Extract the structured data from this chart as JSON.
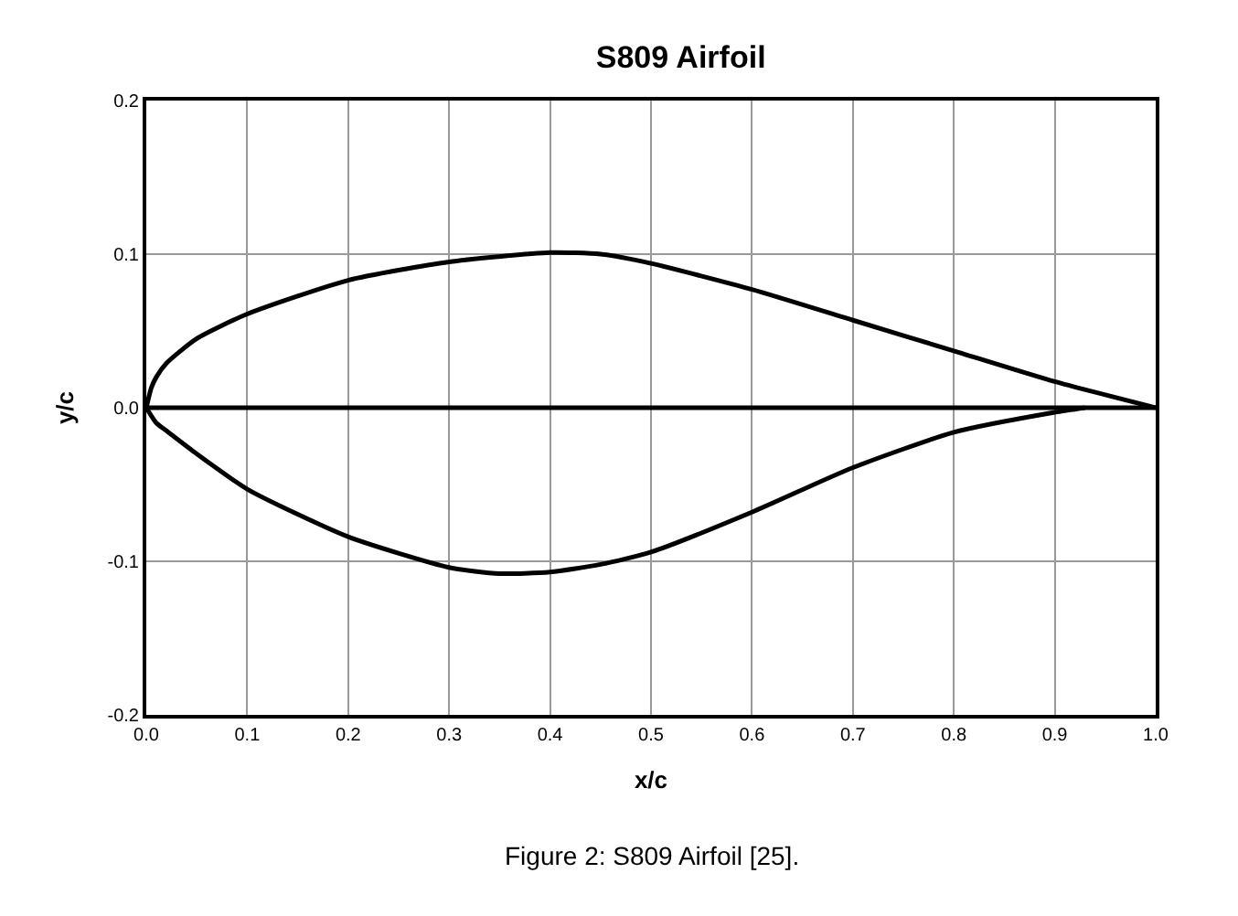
{
  "chart_data": {
    "type": "line",
    "title": "S809 Airfoil",
    "xlabel": "x/c",
    "ylabel": "y/c",
    "xlim": [
      0,
      1
    ],
    "xticks": [
      {
        "value": 0,
        "label": "0.0"
      },
      0.1,
      0.2,
      0.3,
      0.4,
      0.5,
      0.6,
      0.7,
      0.8,
      0.9,
      {
        "value": 1,
        "label": "1.0"
      }
    ],
    "ylim": [
      -0.2,
      0.2
    ],
    "yticks": [
      -0.2,
      -0.1,
      {
        "value": 0,
        "label": "0.0"
      },
      0.1,
      0.2
    ],
    "grid": true,
    "marker": "none",
    "line_style": "solid",
    "series": [
      {
        "color": "#000000",
        "x": [
          0,
          0.005,
          0.01,
          0.02,
          0.05,
          0.1,
          0.2,
          0.3,
          0.4,
          0.45,
          0.5,
          0.6,
          0.7,
          0.8,
          0.9,
          1.0
        ],
        "values": [
          0,
          0.013,
          0.02,
          0.029,
          0.045,
          0.061,
          0.083,
          0.095,
          0.101,
          0.1,
          0.094,
          0.077,
          0.057,
          0.037,
          0.017,
          0
        ]
      },
      {
        "color": "#000000",
        "x": [
          0,
          0.01,
          0.02,
          0.05,
          0.1,
          0.2,
          0.3,
          0.35,
          0.4,
          0.45,
          0.5,
          0.6,
          0.7,
          0.8,
          0.9,
          0.93
        ],
        "values": [
          0,
          -0.01,
          -0.015,
          -0.03,
          -0.053,
          -0.084,
          -0.104,
          -0.108,
          -0.107,
          -0.102,
          -0.094,
          -0.068,
          -0.039,
          -0.016,
          -0.003,
          0
        ]
      },
      {
        "color": "#000000",
        "x": [
          0,
          1
        ],
        "values": [
          0,
          0
        ]
      }
    ],
    "annotations": [
      "Figure 2: S809 Airfoil [25]."
    ]
  }
}
